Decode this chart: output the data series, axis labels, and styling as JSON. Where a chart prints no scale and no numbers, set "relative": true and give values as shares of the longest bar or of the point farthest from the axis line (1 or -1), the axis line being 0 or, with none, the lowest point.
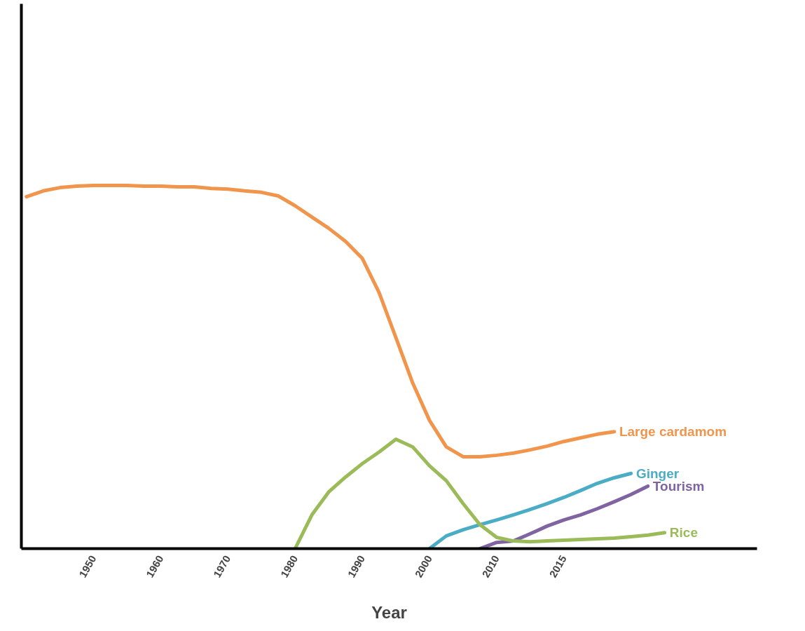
{
  "chart_data": {
    "type": "line",
    "relative": true,
    "xlabel": "Year",
    "legend": false,
    "grid": false,
    "marker": "none",
    "categories": [
      null,
      null,
      null,
      null,
      "1950",
      null,
      null,
      null,
      "1960",
      null,
      null,
      null,
      "1970",
      null,
      null,
      null,
      "1980",
      null,
      null,
      null,
      "1990",
      null,
      null,
      null,
      "2000",
      null,
      null,
      null,
      "2010",
      null,
      null,
      null,
      "2015",
      null,
      null,
      null,
      null,
      null,
      null,
      null,
      null
    ],
    "series": [
      {
        "name": "Large cardamom",
        "color": "#f0954b",
        "values": [
          0.969,
          0.985,
          0.994,
          0.998,
          1,
          1,
          1,
          0.998,
          0.998,
          0.996,
          0.996,
          0.992,
          0.99,
          0.985,
          0.981,
          0.971,
          0.944,
          0.913,
          0.882,
          0.846,
          0.799,
          0.705,
          0.581,
          0.456,
          0.353,
          0.28,
          0.253,
          0.253,
          0.257,
          0.263,
          0.272,
          0.282,
          0.295,
          0.305,
          0.315,
          0.322,
          null,
          null,
          null,
          null,
          null
        ]
      },
      {
        "name": "Ginger",
        "color": "#4bacc6",
        "values": [
          null,
          null,
          null,
          null,
          null,
          null,
          null,
          null,
          null,
          null,
          null,
          null,
          null,
          null,
          null,
          null,
          null,
          null,
          null,
          null,
          null,
          null,
          null,
          null,
          0,
          0.035,
          0.052,
          0.066,
          0.079,
          0.093,
          0.108,
          0.124,
          0.141,
          0.16,
          0.18,
          0.195,
          0.207,
          null,
          null,
          null,
          null
        ]
      },
      {
        "name": "Tourism",
        "color": "#8064a2",
        "values": [
          null,
          null,
          null,
          null,
          null,
          null,
          null,
          null,
          null,
          null,
          null,
          null,
          null,
          null,
          null,
          null,
          null,
          null,
          null,
          null,
          null,
          null,
          null,
          null,
          null,
          null,
          null,
          0,
          0.017,
          0.021,
          0.041,
          0.062,
          0.079,
          0.093,
          0.11,
          0.129,
          0.149,
          0.172,
          null,
          null,
          null
        ]
      },
      {
        "name": "Rice",
        "color": "#9bbb59",
        "values": [
          null,
          null,
          null,
          null,
          null,
          null,
          null,
          null,
          null,
          null,
          null,
          null,
          null,
          null,
          null,
          null,
          0,
          0.093,
          0.156,
          0.197,
          0.234,
          0.266,
          0.301,
          0.28,
          0.228,
          0.187,
          0.124,
          0.066,
          0.031,
          0.021,
          0.019,
          0.021,
          0.023,
          0.025,
          0.027,
          0.029,
          0.033,
          0.037,
          0.044,
          null,
          null
        ]
      }
    ]
  }
}
